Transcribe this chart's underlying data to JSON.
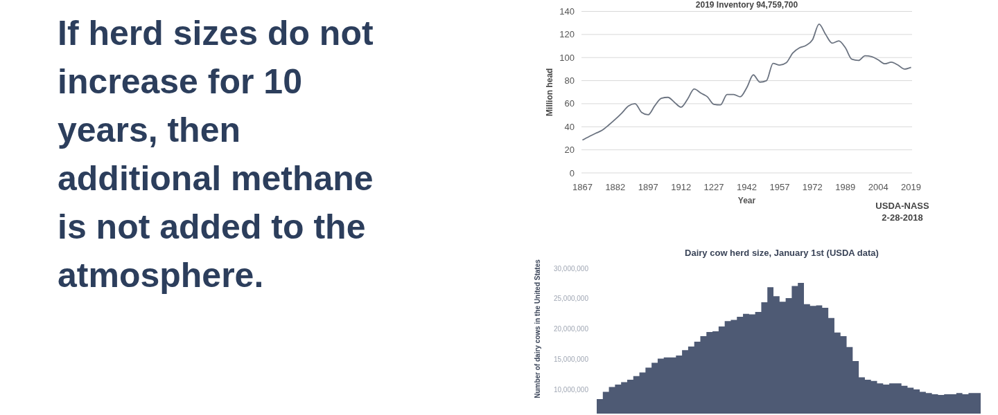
{
  "chart_data": [
    {
      "type": "other",
      "title": "If herd sizes do not increase for 10 years, then additional methane is not added to the atmosphere."
    },
    {
      "type": "line",
      "title": "2019 Inventory 94,759,700",
      "xlabel": "Year",
      "ylabel": "Million head",
      "color": "#6b7380",
      "grid": "y",
      "annotations": [
        "USDA-NASS",
        "2-28-2018"
      ],
      "categories": [
        "1867",
        null,
        null,
        null,
        null,
        "1882",
        null,
        null,
        null,
        null,
        "1897",
        null,
        null,
        null,
        null,
        "1912",
        null,
        null,
        null,
        null,
        "1227",
        null,
        null,
        null,
        null,
        "1942",
        null,
        null,
        null,
        null,
        "1957",
        null,
        null,
        null,
        null,
        "1972",
        null,
        null,
        null,
        null,
        "1989",
        null,
        null,
        null,
        null,
        "2004",
        null,
        null,
        null,
        null,
        "2019"
      ],
      "values": [
        28.5,
        31.5,
        34.3,
        37,
        41.5,
        46.5,
        52,
        58,
        60,
        52.5,
        50.4,
        58.2,
        64.7,
        65.5,
        61.2,
        57,
        64,
        72.8,
        69.2,
        66,
        59.5,
        59,
        68,
        68,
        66,
        73.9,
        85,
        78.7,
        80,
        95,
        93.5,
        95.5,
        104,
        108.4,
        110.5,
        115.4,
        129,
        120,
        112.5,
        114.5,
        108.5,
        98.5,
        97.5,
        101.5,
        100.8,
        98,
        94.6,
        96,
        93.5,
        90,
        91.5
      ],
      "ylim": [
        0,
        140
      ],
      "yticks": [
        0,
        20,
        40,
        60,
        80,
        100,
        120,
        140
      ]
    },
    {
      "type": "area",
      "title": "Dairy cow herd size, January 1st (USDA data)",
      "ylabel": "Number of dairy cows in the United States",
      "color": "#4e5a74",
      "tick_labels": "y",
      "categories": [
        null,
        null,
        null,
        null,
        null,
        null,
        null,
        null,
        null,
        null,
        null,
        null,
        null,
        null,
        null,
        null,
        null,
        null,
        null,
        null,
        null,
        null,
        null,
        null,
        null,
        null,
        null,
        null,
        null,
        null,
        null,
        null,
        null,
        null,
        null,
        null,
        null,
        null,
        null,
        null,
        null,
        null,
        null,
        null,
        null,
        null,
        null,
        null,
        null,
        null,
        null,
        null,
        null,
        null,
        null,
        null,
        null,
        null,
        null,
        null,
        null,
        null,
        null,
        null
      ],
      "values": [
        8400000,
        9600000,
        10400000,
        10800000,
        11200000,
        11600000,
        12200000,
        12800000,
        13600000,
        14400000,
        15100000,
        15300000,
        15300000,
        15600000,
        16500000,
        17100000,
        17900000,
        18800000,
        19500000,
        19600000,
        20400000,
        21300000,
        21500000,
        22000000,
        22500000,
        22400000,
        22800000,
        24400000,
        26900000,
        25400000,
        24500000,
        25100000,
        27100000,
        27600000,
        24100000,
        23800000,
        23900000,
        23500000,
        21800000,
        19400000,
        18800000,
        17000000,
        14700000,
        12000000,
        11600000,
        11400000,
        11000000,
        10800000,
        11000000,
        11000000,
        10600000,
        10300000,
        10000000,
        9600000,
        9400000,
        9200000,
        9100000,
        9200000,
        9200000,
        9400000,
        9200000,
        9400000,
        9400000,
        9400000
      ],
      "ylim": [
        6000000,
        30000000
      ],
      "yticks": [
        {
          "value": 10000000,
          "label": "10,000,000"
        },
        {
          "value": 15000000,
          "label": "15,000,000"
        },
        {
          "value": 20000000,
          "label": "20,000,000"
        },
        {
          "value": 25000000,
          "label": "25,000,000"
        },
        {
          "value": 30000000,
          "label": "30,000,000"
        }
      ]
    }
  ]
}
